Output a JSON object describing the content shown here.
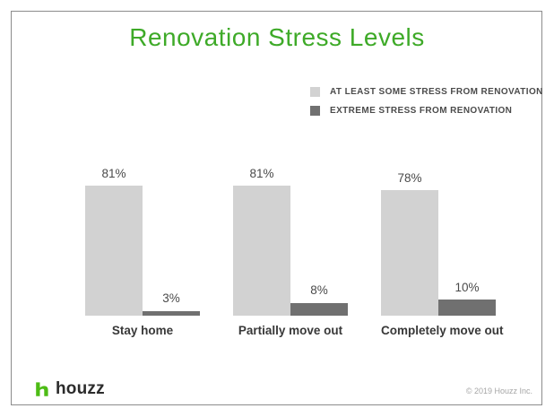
{
  "title": "Renovation Stress Levels",
  "legend": {
    "items": [
      {
        "label": "AT LEAST SOME STRESS FROM RENOVATION",
        "color": "#d2d2d2"
      },
      {
        "label": "EXTREME STRESS FROM RENOVATION",
        "color": "#707070"
      }
    ]
  },
  "chart_data": {
    "type": "bar",
    "title": "Renovation Stress Levels",
    "categories": [
      "Stay home",
      "Partially move out",
      "Completely move out"
    ],
    "series": [
      {
        "name": "AT LEAST SOME STRESS FROM RENOVATION",
        "color": "#d2d2d2",
        "values": [
          81,
          81,
          78
        ]
      },
      {
        "name": "EXTREME STRESS FROM RENOVATION",
        "color": "#707070",
        "values": [
          3,
          8,
          10
        ]
      }
    ],
    "value_suffix": "%",
    "ylim": [
      0,
      100
    ],
    "grid": false,
    "legend_position": "top-right",
    "xlabel": "",
    "ylabel": ""
  },
  "footer": {
    "brand": "houzz",
    "copyright": "© 2019 Houzz Inc."
  },
  "colors": {
    "title_green": "#3eaa28",
    "brand_green": "#4dbc15",
    "light_bar": "#d2d2d2",
    "dark_bar": "#707070",
    "frame_border": "#8c8c8c",
    "label_text": "#4a4a4a"
  }
}
